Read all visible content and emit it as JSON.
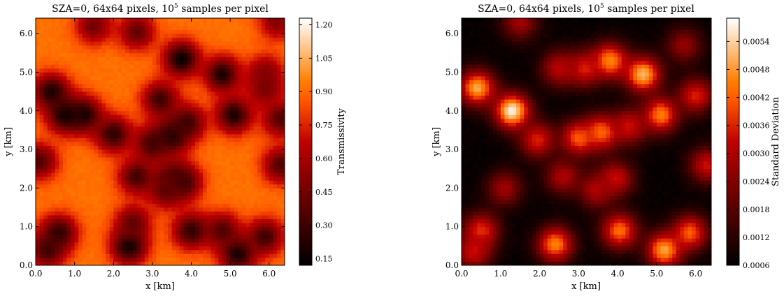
{
  "chart_data": [
    {
      "type": "heatmap",
      "title_main": "SZA=0, 64x64 pixels, 10",
      "title_exp": "5",
      "title_tail": " samples per pixel",
      "xlabel": "x [km]",
      "ylabel": "y [km]",
      "xlim": [
        0.0,
        6.4
      ],
      "ylim": [
        0.0,
        6.4
      ],
      "xticks": [
        "0.0",
        "1.0",
        "2.0",
        "3.0",
        "4.0",
        "5.0",
        "6.0"
      ],
      "yticks": [
        "0.0",
        "1.0",
        "2.0",
        "3.0",
        "4.0",
        "5.0",
        "6.0"
      ],
      "grid": "64x64",
      "colormap": "gist_heat",
      "colorbar": {
        "label": "Transmissivity",
        "range": [
          0.12,
          1.23
        ],
        "ticks": [
          "0.15",
          "0.30",
          "0.45",
          "0.60",
          "0.75",
          "0.90",
          "1.05",
          "1.20"
        ]
      },
      "background_value": 0.92,
      "clouds": [
        {
          "x": 1.25,
          "y": 3.9,
          "value": 0.2
        },
        {
          "x": 0.75,
          "y": 3.9,
          "value": 0.18
        },
        {
          "x": 0.4,
          "y": 4.5,
          "value": 0.2
        },
        {
          "x": 3.75,
          "y": 5.35,
          "value": 0.15
        },
        {
          "x": 4.8,
          "y": 4.95,
          "value": 0.2
        },
        {
          "x": 3.2,
          "y": 4.3,
          "value": 0.3
        },
        {
          "x": 3.5,
          "y": 3.35,
          "value": 0.2
        },
        {
          "x": 3.0,
          "y": 3.15,
          "value": 0.3
        },
        {
          "x": 3.9,
          "y": 3.7,
          "value": 0.3
        },
        {
          "x": 5.1,
          "y": 3.9,
          "value": 0.2
        },
        {
          "x": 6.3,
          "y": 3.8,
          "value": 0.35
        },
        {
          "x": 2.0,
          "y": 3.4,
          "value": 0.25
        },
        {
          "x": 5.9,
          "y": 4.6,
          "value": 0.45
        },
        {
          "x": 0.1,
          "y": 2.7,
          "value": 0.35
        },
        {
          "x": 6.3,
          "y": 2.6,
          "value": 0.35
        },
        {
          "x": 2.6,
          "y": 2.3,
          "value": 0.3
        },
        {
          "x": 3.5,
          "y": 2.3,
          "value": 0.4
        },
        {
          "x": 3.8,
          "y": 2.15,
          "value": 0.3
        },
        {
          "x": 3.35,
          "y": 1.95,
          "value": 0.4
        },
        {
          "x": 2.4,
          "y": 0.5,
          "value": 0.15
        },
        {
          "x": 5.2,
          "y": 0.3,
          "value": 0.18
        },
        {
          "x": 4.0,
          "y": 0.9,
          "value": 0.25
        },
        {
          "x": 0.6,
          "y": 0.85,
          "value": 0.25
        },
        {
          "x": 0.3,
          "y": 0.4,
          "value": 0.3
        },
        {
          "x": 5.9,
          "y": 0.75,
          "value": 0.3
        },
        {
          "x": 4.8,
          "y": 0.9,
          "value": 0.35
        },
        {
          "x": 2.5,
          "y": 1.1,
          "value": 0.4
        },
        {
          "x": 1.5,
          "y": 6.2,
          "value": 0.45
        },
        {
          "x": 2.6,
          "y": 6.05,
          "value": 0.4
        },
        {
          "x": 6.2,
          "y": 6.3,
          "value": 0.5
        },
        {
          "x": 5.9,
          "y": 5.0,
          "value": 0.5
        }
      ]
    },
    {
      "type": "heatmap",
      "title_main": "SZA=0, 64x64 pixels, 10",
      "title_exp": "5",
      "title_tail": " samples per pixel",
      "xlabel": "x [km]",
      "ylabel": "y [km]",
      "xlim": [
        0.0,
        6.4
      ],
      "ylim": [
        0.0,
        6.4
      ],
      "xticks": [
        "0.0",
        "1.0",
        "2.0",
        "3.0",
        "4.0",
        "5.0",
        "6.0"
      ],
      "yticks": [
        "0.0",
        "1.0",
        "2.0",
        "3.0",
        "4.0",
        "5.0",
        "6.0"
      ],
      "grid": "64x64",
      "colormap": "gist_heat",
      "colorbar": {
        "label": "Standard Deviation",
        "range": [
          0.0006,
          0.0059
        ],
        "ticks": [
          "0.0006",
          "0.0012",
          "0.0018",
          "0.0024",
          "0.0030",
          "0.0036",
          "0.0042",
          "0.0048",
          "0.0054"
        ]
      },
      "background_value": 0.0007,
      "clouds": [
        {
          "x": 1.3,
          "y": 4.0,
          "value": 0.0058
        },
        {
          "x": 0.4,
          "y": 4.6,
          "value": 0.005
        },
        {
          "x": 4.65,
          "y": 4.95,
          "value": 0.0052
        },
        {
          "x": 3.8,
          "y": 5.3,
          "value": 0.0048
        },
        {
          "x": 3.15,
          "y": 5.1,
          "value": 0.0036
        },
        {
          "x": 2.5,
          "y": 5.1,
          "value": 0.0032
        },
        {
          "x": 5.1,
          "y": 3.9,
          "value": 0.0046
        },
        {
          "x": 3.6,
          "y": 3.45,
          "value": 0.0044
        },
        {
          "x": 3.0,
          "y": 3.3,
          "value": 0.0042
        },
        {
          "x": 1.95,
          "y": 3.25,
          "value": 0.0036
        },
        {
          "x": 4.3,
          "y": 3.6,
          "value": 0.0034
        },
        {
          "x": 6.0,
          "y": 4.4,
          "value": 0.0036
        },
        {
          "x": 2.6,
          "y": 2.3,
          "value": 0.003
        },
        {
          "x": 3.95,
          "y": 2.25,
          "value": 0.0034
        },
        {
          "x": 6.3,
          "y": 2.6,
          "value": 0.0034
        },
        {
          "x": 1.1,
          "y": 2.0,
          "value": 0.0028
        },
        {
          "x": 3.45,
          "y": 1.95,
          "value": 0.003
        },
        {
          "x": 2.4,
          "y": 0.55,
          "value": 0.0046
        },
        {
          "x": 5.2,
          "y": 0.4,
          "value": 0.005
        },
        {
          "x": 4.05,
          "y": 0.9,
          "value": 0.0044
        },
        {
          "x": 0.5,
          "y": 0.9,
          "value": 0.0038
        },
        {
          "x": 0.3,
          "y": 0.35,
          "value": 0.0034
        },
        {
          "x": 5.85,
          "y": 0.85,
          "value": 0.0042
        },
        {
          "x": 1.5,
          "y": 6.3,
          "value": 0.0028
        },
        {
          "x": 5.7,
          "y": 5.7,
          "value": 0.0026
        }
      ]
    }
  ]
}
